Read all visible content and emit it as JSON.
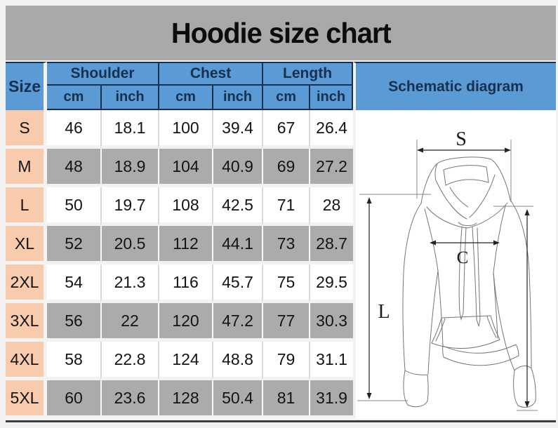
{
  "title": "Hoodie size chart",
  "chart_data": {
    "type": "table",
    "title": "Hoodie size chart",
    "column_groups": [
      {
        "label": "Size",
        "colspan": 1
      },
      {
        "label": "Shoulder",
        "colspan": 2
      },
      {
        "label": "Chest",
        "colspan": 2
      },
      {
        "label": "Length",
        "colspan": 2
      },
      {
        "label": "Schematic diagram",
        "colspan": 1
      }
    ],
    "unit_row": [
      "cm",
      "inch",
      "cm",
      "inch",
      "cm",
      "inch"
    ],
    "columns": [
      "Size",
      "Shoulder (cm)",
      "Shoulder (inch)",
      "Chest (cm)",
      "Chest (inch)",
      "Length (cm)",
      "Length (inch)"
    ],
    "rows": [
      [
        "S",
        "46",
        "18.1",
        "100",
        "39.4",
        "67",
        "26.4"
      ],
      [
        "M",
        "48",
        "18.9",
        "104",
        "40.9",
        "69",
        "27.2"
      ],
      [
        "L",
        "50",
        "19.7",
        "108",
        "42.5",
        "71",
        "28"
      ],
      [
        "XL",
        "52",
        "20.5",
        "112",
        "44.1",
        "73",
        "28.7"
      ],
      [
        "2XL",
        "54",
        "21.3",
        "116",
        "45.7",
        "75",
        "29.5"
      ],
      [
        "3XL",
        "56",
        "22",
        "120",
        "47.2",
        "77",
        "30.3"
      ],
      [
        "4XL",
        "58",
        "22.8",
        "124",
        "48.8",
        "79",
        "31.1"
      ],
      [
        "5XL",
        "60",
        "23.6",
        "128",
        "50.4",
        "81",
        "31.9"
      ]
    ]
  },
  "header": {
    "size": "Size",
    "shoulder": "Shoulder",
    "chest": "Chest",
    "length": "Length",
    "schematic": "Schematic diagram"
  },
  "diagram": {
    "shoulder_label": "S",
    "chest_label": "C",
    "length_label": "L"
  },
  "colors": {
    "header_blue": "#5b9bd5",
    "header_text_navy": "#16304d",
    "size_cell_peach": "#f8cbad",
    "row_gray": "#ababab",
    "row_white": "#ffffff",
    "title_band_gray": "#a9a9a9",
    "divider_navy": "#16304d",
    "bottom_line": "#3e3e3e"
  }
}
